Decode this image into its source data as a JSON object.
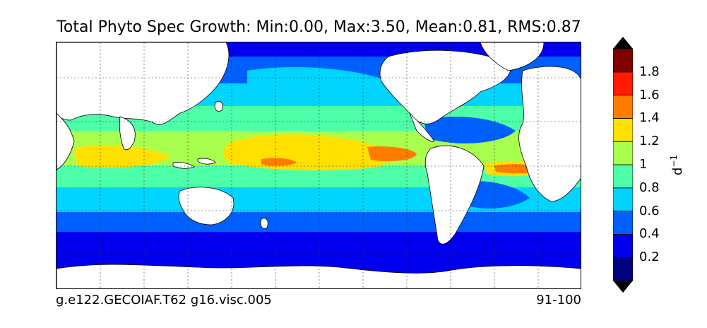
{
  "title": "Total Phyto Spec Growth: Min:0.00, Max:3.50, Mean:0.81, RMS:0.87",
  "footer": {
    "left": "g.e122.GECOIAF.T62 g16.visc.005",
    "right": "91-100"
  },
  "colorbar": {
    "unit_base": "d",
    "unit_exp": "−1",
    "levels": [
      {
        "label": "",
        "color": "#000080"
      },
      {
        "label": "0.2",
        "color": "#0000ee"
      },
      {
        "label": "0.4",
        "color": "#0060ff"
      },
      {
        "label": "0.6",
        "color": "#00d4ff"
      },
      {
        "label": "0.8",
        "color": "#4dffa8"
      },
      {
        "label": "1",
        "color": "#a8ff4d"
      },
      {
        "label": "1.2",
        "color": "#ffe000"
      },
      {
        "label": "1.4",
        "color": "#ff7c00"
      },
      {
        "label": "1.6",
        "color": "#ff1c00"
      },
      {
        "label": "1.8",
        "color": "#800000"
      }
    ],
    "extend_low_color": "#000000",
    "extend_high_color": "#000000"
  },
  "map": {
    "land_color": "#ffffff",
    "grid": true
  }
}
